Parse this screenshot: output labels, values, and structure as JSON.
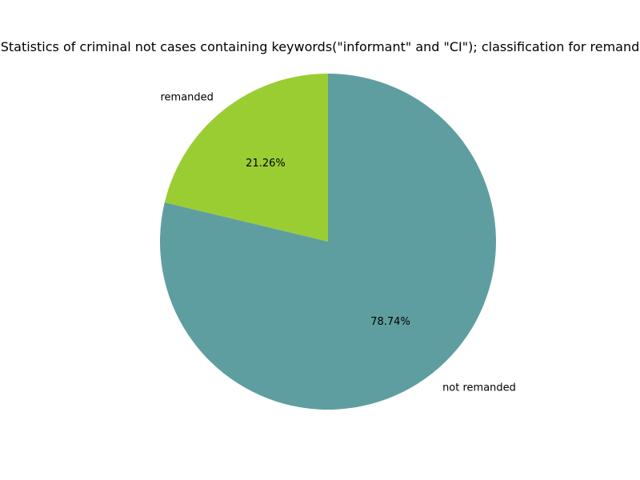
{
  "chart_data": {
    "type": "pie",
    "title": "Statistics of criminal not cases containing keywords(\"informant\" and \"CI\"); classification for remanded",
    "slices": [
      {
        "label": "remanded",
        "value": 21.26,
        "pct_label": "21.26%",
        "color": "#9acd32"
      },
      {
        "label": "not remanded",
        "value": 78.74,
        "pct_label": "78.74%",
        "color": "#5f9ea0"
      }
    ],
    "start_angle_deg": 90,
    "direction": "counterclockwise"
  }
}
